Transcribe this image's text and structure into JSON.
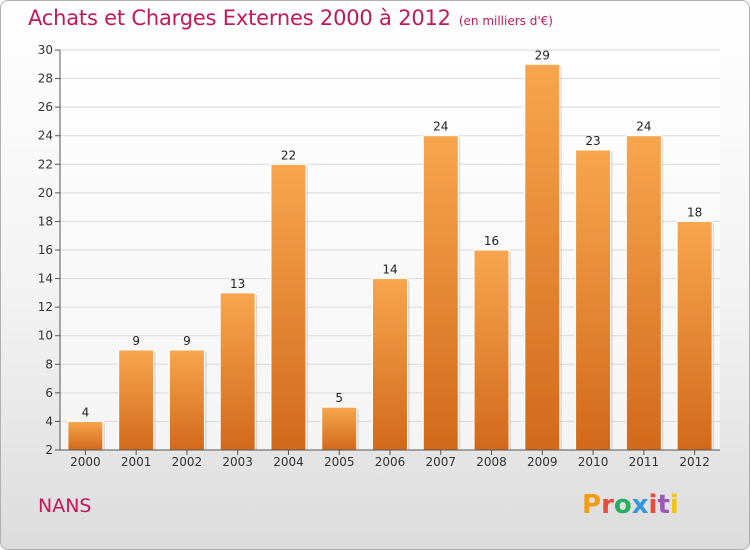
{
  "header": {
    "title": "Achats et Charges Externes 2000 à 2012",
    "subtitle": "(en milliers d'€)"
  },
  "footer": {
    "commune": "NANS",
    "logo_text": "Proxiti",
    "logo_colors": [
      "#f39c12",
      "#e74c3c",
      "#27ae60",
      "#3498db",
      "#e74c3c",
      "#9b59b6",
      "#f1c40f"
    ]
  },
  "colors": {
    "bar_light": "#f7a64e",
    "bar_dark": "#d2691a",
    "title": "#c2185b",
    "axis": "#555555",
    "grid": "#d9d9d9"
  },
  "chart_data": {
    "type": "bar",
    "categories": [
      "2000",
      "2001",
      "2002",
      "2003",
      "2004",
      "2005",
      "2006",
      "2007",
      "2008",
      "2009",
      "2010",
      "2011",
      "2012"
    ],
    "values": [
      4,
      9,
      9,
      13,
      22,
      5,
      14,
      24,
      16,
      29,
      23,
      24,
      18
    ],
    "data_labels": [
      "4",
      "9",
      "9",
      "13",
      "22",
      "5",
      "14",
      "24",
      "16",
      "29",
      "23",
      "24",
      "18"
    ],
    "ylim": [
      2,
      30
    ],
    "yticks": [
      "2",
      "4",
      "6",
      "8",
      "10",
      "12",
      "14",
      "16",
      "18",
      "20",
      "22",
      "24",
      "26",
      "28",
      "30"
    ],
    "grid": true
  }
}
